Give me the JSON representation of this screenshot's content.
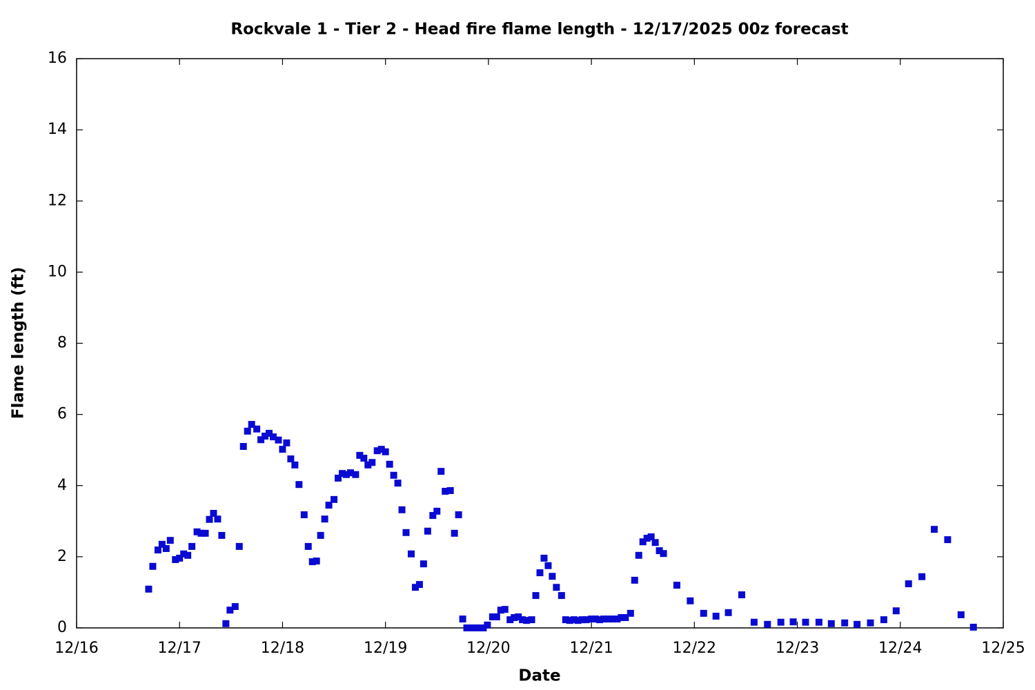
{
  "chart_data": {
    "type": "scatter",
    "title": "Rockvale 1 - Tier 2 - Head fire flame length - 12/17/2025 00z forecast",
    "xlabel": "Date",
    "ylabel": "Flame length (ft)",
    "color": "#0a0ad2",
    "xlim": [
      0,
      9
    ],
    "xticks": [
      {
        "value": 0,
        "label": "12/16"
      },
      {
        "value": 1,
        "label": "12/17"
      },
      {
        "value": 2,
        "label": "12/18"
      },
      {
        "value": 3,
        "label": "12/19"
      },
      {
        "value": 4,
        "label": "12/20"
      },
      {
        "value": 5,
        "label": "12/21"
      },
      {
        "value": 6,
        "label": "12/22"
      },
      {
        "value": 7,
        "label": "12/23"
      },
      {
        "value": 8,
        "label": "12/24"
      },
      {
        "value": 9,
        "label": "12/25"
      }
    ],
    "ylim": [
      0,
      16
    ],
    "yticks": [
      0,
      2,
      4,
      6,
      8,
      10,
      12,
      14,
      16
    ],
    "x": [
      0.7,
      0.74,
      0.79,
      0.83,
      0.87,
      0.91,
      0.96,
      1.0,
      1.04,
      1.08,
      1.12,
      1.17,
      1.21,
      1.25,
      1.29,
      1.33,
      1.37,
      1.41,
      1.45,
      1.49,
      1.54,
      1.58,
      1.62,
      1.66,
      1.7,
      1.75,
      1.79,
      1.83,
      1.87,
      1.91,
      1.96,
      2.0,
      2.04,
      2.08,
      2.12,
      2.16,
      2.21,
      2.25,
      2.29,
      2.33,
      2.37,
      2.41,
      2.45,
      2.5,
      2.54,
      2.58,
      2.62,
      2.66,
      2.71,
      2.75,
      2.79,
      2.83,
      2.87,
      2.92,
      2.96,
      3.0,
      3.04,
      3.08,
      3.12,
      3.16,
      3.2,
      3.25,
      3.29,
      3.33,
      3.37,
      3.41,
      3.46,
      3.5,
      3.54,
      3.58,
      3.63,
      3.67,
      3.71,
      3.75,
      3.79,
      3.83,
      3.87,
      3.92,
      3.95,
      3.99,
      4.04,
      4.08,
      4.12,
      4.16,
      4.21,
      4.25,
      4.29,
      4.33,
      4.37,
      4.42,
      4.46,
      4.5,
      4.54,
      4.58,
      4.62,
      4.66,
      4.71,
      4.75,
      4.79,
      4.83,
      4.87,
      4.91,
      4.95,
      5.0,
      5.04,
      5.08,
      5.12,
      5.16,
      5.21,
      5.25,
      5.29,
      5.33,
      5.38,
      5.42,
      5.46,
      5.5,
      5.54,
      5.58,
      5.62,
      5.66,
      5.7,
      5.83,
      5.96,
      6.09,
      6.21,
      6.33,
      6.46,
      6.58,
      6.71,
      6.84,
      6.96,
      7.08,
      7.21,
      7.33,
      7.46,
      7.58,
      7.71,
      7.84,
      7.96,
      8.08,
      8.21,
      8.33,
      8.46,
      8.59,
      8.71
    ],
    "values": [
      1.09,
      1.73,
      2.19,
      2.35,
      2.23,
      2.46,
      1.92,
      1.96,
      2.08,
      2.04,
      2.29,
      2.7,
      2.66,
      2.66,
      3.05,
      3.22,
      3.06,
      2.6,
      0.12,
      0.5,
      0.6,
      2.29,
      5.1,
      5.53,
      5.72,
      5.59,
      5.29,
      5.39,
      5.47,
      5.37,
      5.28,
      5.02,
      5.2,
      4.75,
      4.58,
      4.03,
      3.18,
      2.29,
      1.86,
      1.88,
      2.6,
      3.06,
      3.45,
      3.61,
      4.21,
      4.34,
      4.31,
      4.36,
      4.31,
      4.85,
      4.77,
      4.58,
      4.65,
      4.98,
      5.02,
      4.95,
      4.6,
      4.29,
      4.07,
      3.32,
      2.68,
      2.08,
      1.14,
      1.22,
      1.8,
      2.72,
      3.16,
      3.28,
      4.4,
      3.84,
      3.86,
      2.66,
      3.18,
      0.25,
      0,
      0,
      0,
      0,
      0,
      0.08,
      0.31,
      0.31,
      0.5,
      0.52,
      0.23,
      0.29,
      0.31,
      0.23,
      0.21,
      0.23,
      0.91,
      1.55,
      1.96,
      1.75,
      1.45,
      1.14,
      0.91,
      0.23,
      0.21,
      0.23,
      0.21,
      0.23,
      0.23,
      0.25,
      0.25,
      0.23,
      0.25,
      0.25,
      0.25,
      0.25,
      0.29,
      0.29,
      0.41,
      1.34,
      2.04,
      2.42,
      2.52,
      2.56,
      2.4,
      2.17,
      2.09,
      1.2,
      0.76,
      0.41,
      0.33,
      0.43,
      0.93,
      0.16,
      0.1,
      0.16,
      0.17,
      0.16,
      0.16,
      0.12,
      0.14,
      0.1,
      0.14,
      0.23,
      0.48,
      1.24,
      1.44,
      2.77,
      2.48,
      0.37,
      0.02
    ]
  }
}
